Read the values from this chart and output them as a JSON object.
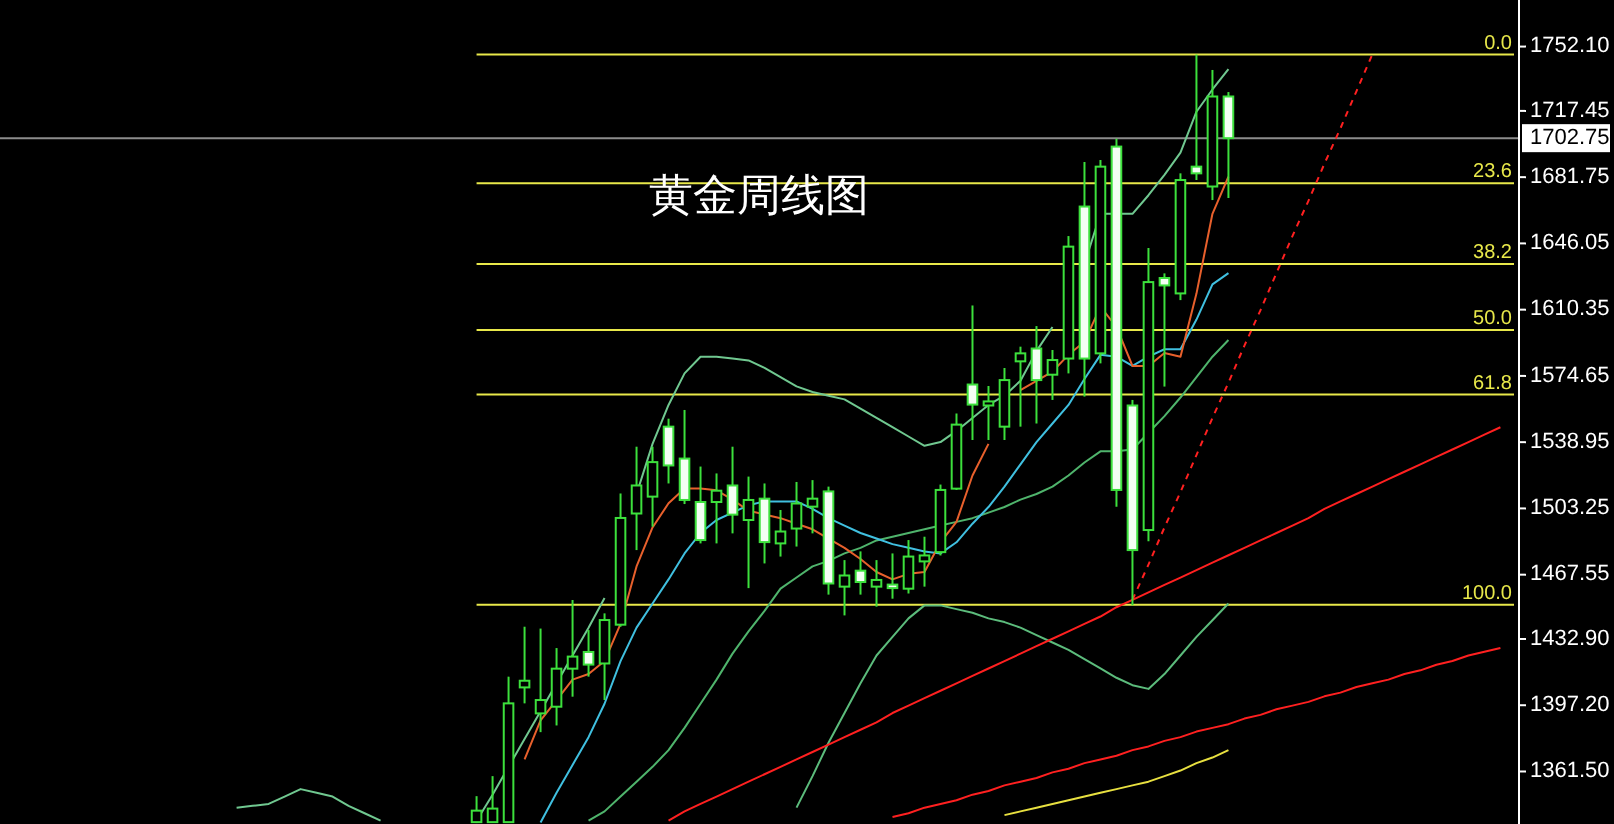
{
  "chart_data": {
    "type": "candlestick",
    "title": "黄金周线图",
    "categories": [
      null,
      null,
      null,
      null,
      null,
      null,
      null,
      null,
      null,
      null,
      null,
      null,
      null,
      null,
      null,
      null,
      null,
      null,
      null,
      null,
      null,
      null,
      null,
      null,
      null,
      null,
      null,
      null,
      null,
      null,
      null,
      null,
      null,
      null,
      null,
      null,
      null,
      null,
      null,
      null,
      null,
      null,
      null,
      null,
      null,
      null,
      null,
      null,
      null,
      null,
      null,
      null,
      null,
      null,
      null,
      null,
      null,
      null,
      null,
      null,
      null,
      null,
      null,
      null,
      null,
      null,
      null,
      null,
      null,
      null,
      null,
      null,
      null,
      null,
      null,
      null,
      null,
      null,
      null,
      null,
      null,
      null,
      null,
      null,
      null,
      null,
      null,
      null,
      null,
      null,
      null,
      null,
      null,
      null
    ],
    "ohlc": [
      null,
      null,
      null,
      null,
      null,
      null,
      null,
      null,
      null,
      null,
      null,
      null,
      null,
      null,
      null,
      null,
      null,
      null,
      null,
      null,
      null,
      null,
      null,
      null,
      null,
      null,
      null,
      null,
      null,
      [
        1334.2,
        1348.2,
        1333.7,
        1340.4
      ],
      [
        1334.2,
        1359.0,
        1334.2,
        1341.5
      ],
      [
        1334.2,
        1412.6,
        1334.2,
        1398.2
      ],
      [
        1406.8,
        1439.5,
        1398.2,
        1410.4
      ],
      [
        1392.8,
        1438.5,
        1382.7,
        1400.0
      ],
      [
        1396.4,
        1428.0,
        1386.3,
        1416.9
      ],
      [
        1416.9,
        1453.9,
        1401.8,
        1423.4
      ],
      [
        1425.9,
        1437.7,
        1412.6,
        1419.1
      ],
      [
        1419.7,
        1446.7,
        1400.0,
        1443.1
      ],
      [
        1440.6,
        1511.3,
        1439.5,
        1498.1
      ],
      [
        1500.5,
        1536.5,
        1480.8,
        1515.6
      ],
      [
        1509.6,
        1536.5,
        1493.4,
        1528.2
      ],
      [
        1547.3,
        1551.6,
        1516.7,
        1526.4
      ],
      [
        1530.1,
        1556.3,
        1505.6,
        1507.8
      ],
      [
        1506.7,
        1525.8,
        1484.4,
        1486.2
      ],
      [
        1506.7,
        1522.1,
        1484.4,
        1512.8
      ],
      [
        1515.6,
        1536.5,
        1489.8,
        1499.9
      ],
      [
        1497.0,
        1520.4,
        1460.3,
        1507.8
      ],
      [
        1508.5,
        1516.7,
        1473.6,
        1485.1
      ],
      [
        1484.4,
        1502.4,
        1477.3,
        1490.8
      ],
      [
        1492.4,
        1517.5,
        1482.7,
        1505.9
      ],
      [
        1504.2,
        1518.5,
        1489.8,
        1508.5
      ],
      [
        1512.4,
        1515.0,
        1456.8,
        1462.8
      ],
      [
        1461.1,
        1475.4,
        1445.6,
        1467.1
      ],
      [
        1469.7,
        1480.1,
        1456.8,
        1463.6
      ],
      [
        1461.1,
        1475.4,
        1450.3,
        1464.7
      ],
      [
        1462.2,
        1479.0,
        1454.6,
        1460.3
      ],
      [
        1460.0,
        1486.2,
        1457.4,
        1477.3
      ],
      [
        1474.7,
        1488.0,
        1461.1,
        1477.9
      ],
      [
        1479.7,
        1516.1,
        1477.9,
        1513.2
      ],
      [
        1513.9,
        1554.4,
        1513.2,
        1548.4
      ],
      [
        1570.0,
        1612.6,
        1540.1,
        1559.2
      ],
      [
        1558.7,
        1569.2,
        1540.1,
        1560.9
      ],
      [
        1547.3,
        1578.9,
        1540.1,
        1572.4
      ],
      [
        1582.5,
        1590.4,
        1547.3,
        1586.8
      ],
      [
        1589.4,
        1601.5,
        1549.0,
        1572.4
      ],
      [
        1575.3,
        1588.6,
        1561.7,
        1583.2
      ],
      [
        1584.0,
        1650.0,
        1576.0,
        1644.3
      ],
      [
        1665.9,
        1689.9,
        1563.5,
        1584.0
      ],
      [
        1586.8,
        1691.0,
        1581.4,
        1687.4
      ],
      [
        1698.2,
        1702.5,
        1504.2,
        1513.2
      ],
      [
        1558.7,
        1561.7,
        1451.0,
        1480.8
      ],
      [
        1491.6,
        1643.6,
        1485.5,
        1625.2
      ],
      [
        1627.4,
        1629.9,
        1568.9,
        1623.4
      ],
      [
        1619.1,
        1683.8,
        1615.5,
        1680.2
      ],
      [
        1687.4,
        1747.8,
        1680.2,
        1683.8
      ],
      [
        1676.7,
        1739.5,
        1669.4,
        1725.2
      ],
      [
        1725.2,
        1727.6,
        1670.5,
        1702.75
      ],
      null,
      null,
      null,
      null,
      null,
      null,
      null,
      null,
      null,
      null,
      null,
      null,
      null,
      null,
      null,
      null,
      null
    ],
    "series": [
      {
        "type": "line",
        "color": "#70c890",
        "values": [
          null,
          null,
          null,
          null,
          null,
          null,
          null,
          null,
          null,
          null,
          null,
          null,
          null,
          null,
          1342,
          1343,
          1344,
          1348,
          1352,
          1350,
          1348,
          1343,
          1339,
          1335,
          null,
          null,
          null,
          null,
          null,
          1335,
          1349,
          1364,
          1379,
          1394,
          1409,
          1424,
          1439,
          1455,
          null,
          1511,
          1538,
          1559,
          1576,
          1585,
          1585,
          1584,
          1583,
          1579,
          1574,
          1569,
          1566,
          1564,
          1562,
          1557,
          1552,
          1547,
          1542,
          1537,
          1539,
          1545,
          1552,
          1559,
          1564,
          1572,
          1588,
          1601,
          null,
          1635,
          1662,
          1662,
          1662,
          1672,
          1683,
          1695,
          1717,
          1729,
          1740,
          null,
          null,
          null,
          null,
          null,
          null,
          null,
          null,
          null,
          null,
          null,
          null,
          null,
          null,
          null,
          null,
          null
        ]
      },
      {
        "type": "line",
        "color": "#4fb46c",
        "values": [
          null,
          null,
          null,
          null,
          null,
          null,
          null,
          null,
          null,
          null,
          null,
          null,
          null,
          null,
          null,
          null,
          null,
          null,
          null,
          null,
          null,
          null,
          null,
          null,
          null,
          null,
          null,
          null,
          null,
          null,
          null,
          null,
          null,
          null,
          null,
          null,
          1335,
          1340,
          1348,
          1356,
          1364,
          1373,
          1385,
          1398,
          1411,
          1425,
          1437,
          1448,
          1460,
          1466,
          1472,
          1475,
          1479,
          1482,
          1486,
          1488,
          1490,
          1492,
          1494,
          1496,
          1498,
          1501,
          1504,
          1508,
          1511,
          1515,
          1521,
          1528,
          1534,
          1534,
          1535,
          1544,
          1553,
          1563,
          1574,
          1585,
          1594,
          null,
          null,
          null,
          null,
          null,
          null,
          null,
          null,
          null,
          null,
          null,
          null,
          null,
          null,
          null,
          null,
          null
        ]
      },
      {
        "type": "line",
        "color": "#5cbc7c",
        "values": [
          null,
          null,
          null,
          null,
          null,
          null,
          null,
          null,
          null,
          null,
          null,
          null,
          null,
          null,
          null,
          null,
          null,
          null,
          null,
          null,
          null,
          null,
          null,
          null,
          null,
          null,
          null,
          null,
          null,
          null,
          null,
          null,
          null,
          null,
          null,
          null,
          null,
          null,
          null,
          null,
          null,
          null,
          null,
          null,
          null,
          null,
          null,
          null,
          null,
          1342,
          1359,
          1377,
          1393,
          1409,
          1424,
          1434,
          1444,
          1451,
          1451,
          1449,
          1447,
          1444,
          1442,
          1439,
          1435,
          1431,
          1427,
          1422,
          1417,
          1412,
          1408,
          1406,
          1414,
          1424,
          1434,
          1443,
          1452,
          null,
          null,
          null,
          null,
          null,
          null,
          null,
          null,
          null,
          null,
          null,
          null,
          null,
          null,
          null,
          null,
          null
        ]
      },
      {
        "type": "line",
        "color": "#40c0e0",
        "values": [
          null,
          null,
          null,
          null,
          null,
          null,
          null,
          null,
          null,
          null,
          null,
          null,
          null,
          null,
          null,
          null,
          null,
          null,
          null,
          null,
          null,
          null,
          null,
          null,
          null,
          null,
          null,
          null,
          null,
          null,
          null,
          null,
          null,
          1334,
          1350,
          1365,
          1380,
          1398,
          1421,
          1439,
          1452,
          1465,
          1479,
          1490,
          1497,
          1501,
          1505,
          1507,
          1507,
          1507,
          1503,
          1498,
          1494,
          1490,
          1487,
          1484,
          1482,
          1480,
          1479,
          1485,
          1495,
          1504,
          1515,
          1527,
          1539,
          1549,
          1559,
          1573,
          1586,
          1585,
          1580,
          1585,
          1589,
          1589,
          1605,
          1624,
          1630,
          null,
          null,
          null,
          null,
          null,
          null,
          null,
          null,
          null,
          null,
          null,
          null,
          null,
          null,
          null,
          null,
          null
        ]
      },
      {
        "type": "line",
        "color": "#e8602c",
        "values": [
          null,
          null,
          null,
          null,
          null,
          null,
          null,
          null,
          null,
          null,
          null,
          null,
          null,
          null,
          null,
          null,
          null,
          null,
          null,
          null,
          null,
          null,
          null,
          null,
          null,
          null,
          null,
          null,
          null,
          null,
          null,
          null,
          1368,
          1389,
          1400,
          1411,
          1414,
          1421,
          1441,
          1472,
          1493,
          1506,
          1514,
          1514,
          1513,
          1508,
          1502,
          1500,
          1498,
          1495,
          1492,
          1487,
          1482,
          1476,
          1469,
          1465,
          1468,
          1469,
          1485,
          1496,
          1521,
          1538,
          null,
          1567,
          1572,
          1577,
          1586,
          1593,
          1612,
          1601,
          1580,
          1580,
          1587,
          1585,
          1619,
          1662,
          1682,
          null,
          null,
          null,
          null,
          null,
          null,
          null,
          null,
          null,
          null,
          null,
          null,
          null,
          null,
          null,
          null,
          null
        ]
      },
      {
        "type": "line",
        "color": "#e8e040",
        "values": [
          null,
          null,
          null,
          null,
          null,
          null,
          null,
          null,
          null,
          null,
          null,
          null,
          null,
          null,
          null,
          null,
          null,
          null,
          null,
          null,
          null,
          null,
          null,
          null,
          null,
          null,
          null,
          null,
          null,
          null,
          null,
          null,
          null,
          null,
          null,
          null,
          null,
          null,
          null,
          null,
          null,
          null,
          null,
          null,
          null,
          null,
          null,
          null,
          null,
          null,
          null,
          null,
          null,
          null,
          null,
          null,
          null,
          null,
          null,
          null,
          null,
          null,
          1338,
          1340,
          1342,
          1344,
          1346,
          1348,
          1350,
          1352,
          1354,
          1356,
          1359,
          1362,
          1366,
          1369,
          1373,
          null,
          null,
          null,
          null,
          null,
          null,
          null,
          null,
          null,
          null,
          null,
          null,
          null,
          null,
          null,
          null,
          null
        ]
      },
      {
        "type": "line",
        "color": "#ff2020",
        "values": [
          null,
          null,
          null,
          null,
          null,
          null,
          null,
          null,
          null,
          null,
          null,
          null,
          null,
          null,
          null,
          null,
          null,
          null,
          null,
          null,
          null,
          null,
          null,
          null,
          null,
          null,
          null,
          null,
          null,
          null,
          null,
          null,
          null,
          null,
          null,
          null,
          null,
          null,
          null,
          null,
          null,
          1335,
          1340,
          1344,
          1348,
          1352,
          1356,
          1360,
          1364,
          1368,
          1372,
          1376,
          1380,
          1384,
          1388,
          1393,
          1397,
          1401,
          1405,
          1409,
          1413,
          1417,
          1421,
          1425,
          1429,
          1433,
          1437,
          1441,
          1445,
          1450,
          1454,
          1458,
          1462,
          1466,
          1470,
          1474,
          1478,
          1482,
          1486,
          1490,
          1494,
          1498,
          1503,
          1507,
          1511,
          1515,
          1519,
          1523,
          1527,
          1531,
          1535,
          1539,
          1543,
          1547
        ]
      },
      {
        "type": "line",
        "color": "#ff2020",
        "values": [
          null,
          null,
          null,
          null,
          null,
          null,
          null,
          null,
          null,
          null,
          null,
          null,
          null,
          null,
          null,
          null,
          null,
          null,
          null,
          null,
          null,
          null,
          null,
          null,
          null,
          null,
          null,
          null,
          null,
          null,
          null,
          null,
          null,
          null,
          null,
          null,
          null,
          null,
          null,
          null,
          null,
          null,
          null,
          null,
          null,
          null,
          null,
          null,
          null,
          null,
          null,
          null,
          null,
          null,
          null,
          1337,
          1339,
          1342,
          1344,
          1346,
          1349,
          1351,
          1354,
          1356,
          1358,
          1361,
          1363,
          1366,
          1368,
          1370,
          1373,
          1375,
          1378,
          1380,
          1383,
          1385,
          1387,
          1390,
          1392,
          1395,
          1397,
          1399,
          1402,
          1404,
          1407,
          1409,
          1411,
          1414,
          1416,
          1419,
          1421,
          1424,
          1426,
          1428
        ]
      },
      {
        "type": "line",
        "color": "#ff2020",
        "line_style": "dashed",
        "values": [
          null,
          null,
          null,
          null,
          null,
          null,
          null,
          null,
          null,
          null,
          null,
          null,
          null,
          null,
          null,
          null,
          null,
          null,
          null,
          null,
          null,
          null,
          null,
          null,
          null,
          null,
          null,
          null,
          null,
          null,
          null,
          null,
          null,
          null,
          null,
          null,
          null,
          null,
          null,
          null,
          null,
          null,
          null,
          null,
          null,
          null,
          null,
          null,
          null,
          null,
          null,
          null,
          null,
          null,
          null,
          null,
          null,
          null,
          null,
          null,
          null,
          null,
          null,
          null,
          null,
          null,
          null,
          null,
          null,
          null,
          1454,
          1473,
          1493,
          1512,
          1532,
          1552,
          1571,
          1591,
          1610,
          1630,
          1650,
          1669,
          1689,
          1708,
          1728,
          1748,
          null,
          null,
          null,
          null,
          null,
          null,
          null,
          null
        ]
      }
    ],
    "ylim": [
      1333.2,
      1777.2
    ],
    "yticks": [
      {
        "value": 1752.1,
        "label": "1752.10"
      },
      {
        "value": 1717.45,
        "label": "1717.45"
      },
      {
        "value": 1681.75,
        "label": "1681.75"
      },
      {
        "value": 1646.05,
        "label": "1646.05"
      },
      {
        "value": 1610.35,
        "label": "1610.35"
      },
      {
        "value": 1574.65,
        "label": "1574.65"
      },
      {
        "value": 1538.95,
        "label": "1538.95"
      },
      {
        "value": 1503.25,
        "label": "1503.25"
      },
      {
        "value": 1467.55,
        "label": "1467.55"
      },
      {
        "value": 1432.9,
        "label": "1432.90"
      },
      {
        "value": 1397.2,
        "label": "1397.20"
      },
      {
        "value": 1361.5,
        "label": "1361.50"
      }
    ],
    "ref_lines": [
      {
        "axis": "y",
        "value": 1702.75,
        "label": "1702.75",
        "color": "#8c8c8c"
      },
      {
        "axis": "y",
        "value": 1747.8,
        "color": "#e8e84a"
      },
      {
        "axis": "y",
        "value": 1678.4,
        "color": "#e8e84a"
      },
      {
        "axis": "y",
        "value": 1634.9,
        "color": "#e8e84a"
      },
      {
        "axis": "y",
        "value": 1599.4,
        "color": "#e8e84a"
      },
      {
        "axis": "y",
        "value": 1564.6,
        "color": "#e8e84a"
      },
      {
        "axis": "y",
        "value": 1451.4,
        "color": "#e8e84a"
      }
    ],
    "annotations": [
      {
        "text": "0.0",
        "y": 1747.8
      },
      {
        "text": "23.6",
        "y": 1678.4
      },
      {
        "text": "38.2",
        "y": 1634.9
      },
      {
        "text": "50.0",
        "y": 1599.4
      },
      {
        "text": "61.8",
        "y": 1564.6
      },
      {
        "text": "100.0",
        "y": 1451.4
      }
    ]
  }
}
